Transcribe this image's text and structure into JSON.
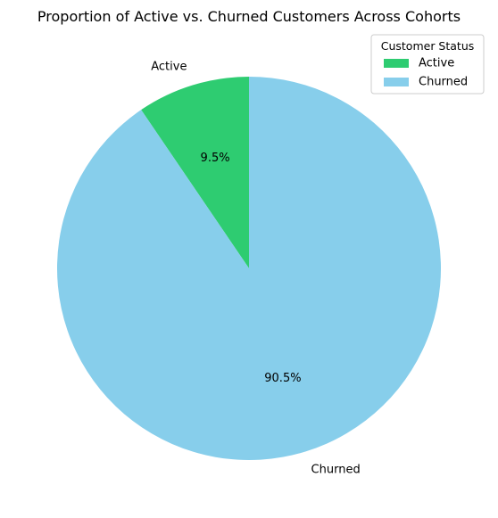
{
  "chart_data": {
    "type": "pie",
    "title": "Proportion of Active vs. Churned Customers Across Cohorts",
    "slices": [
      {
        "label": "Active",
        "percent": 9.5,
        "percent_label": "9.5%",
        "color": "#2ecc71"
      },
      {
        "label": "Churned",
        "percent": 90.5,
        "percent_label": "90.5%",
        "color": "#87ceeb"
      }
    ],
    "start_angle_deg": 90,
    "direction": "counterclockwise",
    "legend": {
      "title": "Customer Status",
      "placement": "top-right",
      "entries": [
        {
          "label": "Active",
          "color": "#2ecc71"
        },
        {
          "label": "Churned",
          "color": "#87ceeb"
        }
      ]
    }
  }
}
